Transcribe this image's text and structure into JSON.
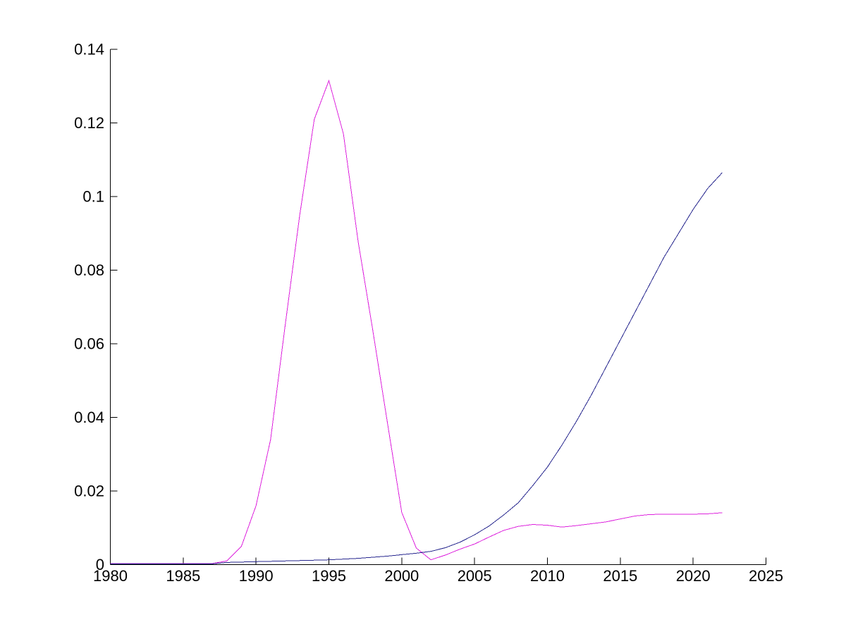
{
  "chart_data": {
    "type": "line",
    "title": "",
    "xlabel": "",
    "ylabel": "",
    "grid": false,
    "legend": null,
    "background": "#FFFFFF",
    "axis_color": "#000000",
    "xlim": [
      1980,
      2025
    ],
    "ylim": [
      0,
      0.14
    ],
    "xticks": {
      "values": [
        1980,
        1985,
        1990,
        1995,
        2000,
        2005,
        2010,
        2015,
        2020,
        2025
      ],
      "labels": [
        "1980",
        "1985",
        "1990",
        "1995",
        "2000",
        "2005",
        "2010",
        "2015",
        "2020",
        "2025"
      ]
    },
    "yticks": {
      "values": [
        0,
        0.02,
        0.04,
        0.06,
        0.08,
        0.1,
        0.12,
        0.14
      ],
      "labels": [
        "0",
        "0.02",
        "0.04",
        "0.06",
        "0.08",
        "0.1",
        "0.12",
        "0.14"
      ]
    },
    "x": [
      1980,
      1981,
      1982,
      1983,
      1984,
      1985,
      1986,
      1987,
      1988,
      1989,
      1990,
      1991,
      1992,
      1993,
      1994,
      1995,
      1996,
      1997,
      1998,
      1999,
      2000,
      2001,
      2002,
      2003,
      2004,
      2005,
      2006,
      2007,
      2008,
      2009,
      2010,
      2011,
      2012,
      2013,
      2014,
      2015,
      2016,
      2017,
      2018,
      2019,
      2020,
      2021,
      2022
    ],
    "series": [
      {
        "name": "magenta-series",
        "color": "#DD22DD",
        "values": [
          0.0003,
          0.0003,
          0.0003,
          0.0003,
          0.0003,
          0.0003,
          0.0003,
          0.0003,
          0.001,
          0.005,
          0.016,
          0.034,
          0.065,
          0.095,
          0.121,
          0.1315,
          0.117,
          0.088,
          0.064,
          0.039,
          0.0142,
          0.0045,
          0.0013,
          0.0026,
          0.0042,
          0.0056,
          0.0075,
          0.0093,
          0.0104,
          0.0109,
          0.0107,
          0.0102,
          0.0106,
          0.0111,
          0.0116,
          0.0124,
          0.0132,
          0.0136,
          0.0137,
          0.0137,
          0.0137,
          0.0138,
          0.0141
        ]
      },
      {
        "name": "blue-series",
        "color": "#26268E",
        "values": [
          0.0002,
          0.0002,
          0.0002,
          0.0002,
          0.0002,
          0.0002,
          0.0002,
          0.0002,
          0.0006,
          0.0007,
          0.0008,
          0.0009,
          0.001,
          0.0011,
          0.0012,
          0.0013,
          0.0015,
          0.0017,
          0.002,
          0.0023,
          0.0027,
          0.0031,
          0.0036,
          0.0046,
          0.0061,
          0.0081,
          0.0105,
          0.0135,
          0.0168,
          0.0215,
          0.0265,
          0.0325,
          0.039,
          0.046,
          0.0535,
          0.061,
          0.0685,
          0.076,
          0.0835,
          0.09,
          0.0965,
          0.1022,
          0.1065
        ]
      }
    ]
  }
}
